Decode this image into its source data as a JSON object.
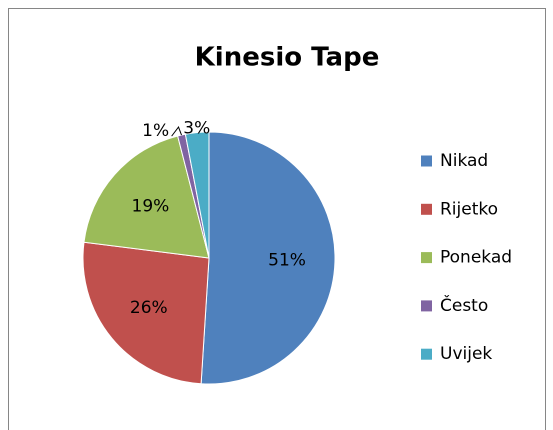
{
  "chart_data": {
    "type": "pie",
    "title": "Kinesio Tape",
    "categories": [
      "Nikad",
      "Rijetko",
      "Ponekad",
      "Često",
      "Uvijek"
    ],
    "values": [
      51,
      26,
      19,
      1,
      3
    ],
    "value_labels": [
      "51%",
      "26%",
      "19%",
      "1%",
      "3%"
    ],
    "colors": [
      "#4f81bd",
      "#c0504d",
      "#9bbb59",
      "#8064a2",
      "#4bacc6"
    ],
    "legend": "right"
  }
}
